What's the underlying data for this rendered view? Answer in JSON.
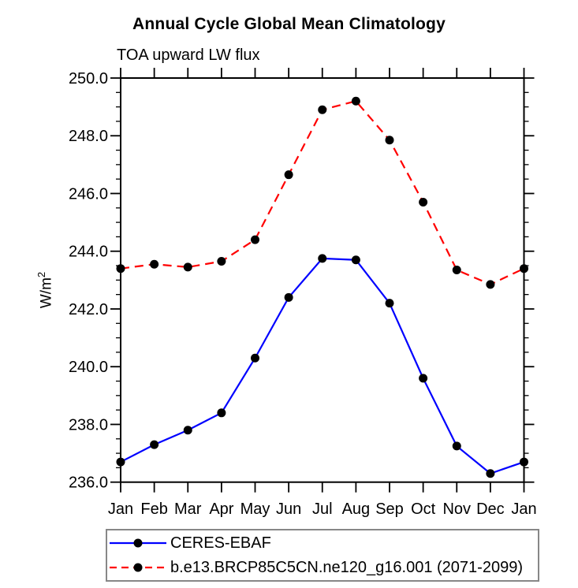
{
  "chart_data": {
    "type": "line",
    "title": "Annual Cycle Global Mean Climatology",
    "subtitle": "TOA upward LW flux",
    "ylabel_base": "W/m",
    "ylabel_exp": "2",
    "categories": [
      "Jan",
      "Feb",
      "Mar",
      "Apr",
      "May",
      "Jun",
      "Jul",
      "Aug",
      "Sep",
      "Oct",
      "Nov",
      "Dec",
      "Jan"
    ],
    "ylim": [
      236.0,
      250.0
    ],
    "ytick_major_step": 2.0,
    "ytick_minor_step": 0.5,
    "ytick_labels": [
      "236.0",
      "238.0",
      "240.0",
      "242.0",
      "244.0",
      "246.0",
      "248.0",
      "250.0"
    ],
    "grid": false,
    "legend_position": "bottom-left",
    "axis_color": "#000000",
    "marker_style": "filled-circle",
    "series": [
      {
        "name": "CERES-EBAF",
        "color": "#0000ff",
        "line_style": "solid",
        "marker_color": "#000000",
        "values": [
          236.7,
          237.3,
          237.8,
          238.4,
          240.3,
          242.4,
          243.75,
          243.7,
          242.2,
          239.6,
          237.25,
          236.3,
          236.7
        ]
      },
      {
        "name": "b.e13.BRCP85C5CN.ne120_g16.001 (2071-2099)",
        "color": "#ff0000",
        "line_style": "dashed",
        "marker_color": "#000000",
        "values": [
          243.4,
          243.55,
          243.45,
          243.65,
          244.4,
          246.65,
          248.9,
          249.2,
          247.85,
          245.7,
          243.35,
          242.85,
          243.4
        ]
      }
    ]
  }
}
